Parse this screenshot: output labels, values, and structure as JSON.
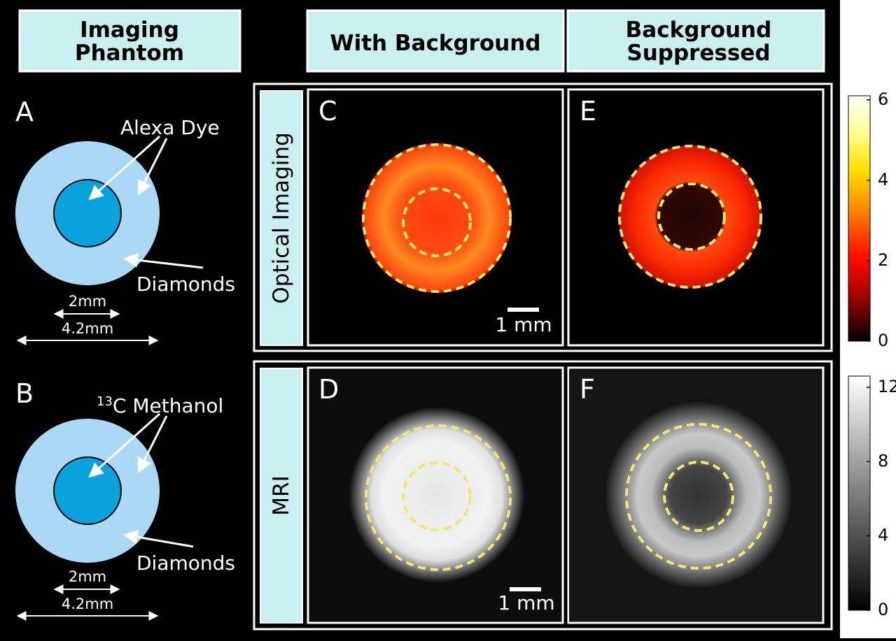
{
  "headers": [
    {
      "lines": [
        "Imaging",
        "Phantom"
      ]
    },
    {
      "lines": [
        "With Background"
      ]
    },
    {
      "lines": [
        "Background",
        "Suppressed"
      ]
    }
  ],
  "row_labels": [
    "Optical Imaging",
    "MRI"
  ],
  "phantoms": [
    {
      "letter": "A",
      "fluid": {
        "text": "Alexa Dye"
      },
      "ring": "Diamonds",
      "inner_size": "2mm",
      "outer_size": "4.2mm"
    },
    {
      "letter": "B",
      "fluid": {
        "sup": "13",
        "text": "C Methanol"
      },
      "ring": "Diamonds",
      "inner_size": "2mm",
      "outer_size": "4.2mm"
    }
  ],
  "panels": [
    {
      "letter": "C",
      "scale": "1 mm"
    },
    {
      "letter": "E"
    },
    {
      "letter": "D",
      "scale": "1 mm"
    },
    {
      "letter": "F"
    }
  ],
  "colorbars": [
    {
      "lim": [
        0,
        6.1
      ],
      "ticks": [
        0,
        2,
        4,
        6
      ]
    },
    {
      "lim": [
        0,
        12.6
      ],
      "ticks": [
        0,
        4,
        8,
        12
      ]
    }
  ]
}
